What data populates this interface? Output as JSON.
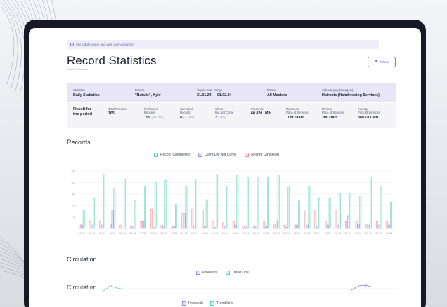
{
  "notice": "Set a date range and view query statistics",
  "page": {
    "title": "Record Statistics",
    "subtitle": "Record Statistics",
    "filters_label": "Filters"
  },
  "info_bar": [
    {
      "label": "Statistics",
      "value": "Daily Statistics"
    },
    {
      "label": "Branch",
      "value": "\"Natalie\", Kyiv"
    },
    {
      "label": "Report Date Range",
      "value": "01.01.24 — 01.02.24"
    },
    {
      "label": "Master",
      "value": "All Masters"
    },
    {
      "label": "Subcategory (Category)",
      "value": "Haircuts (Hairdressing Services)"
    }
  ],
  "results": {
    "heading_line1": "Result for",
    "heading_line2": "the period",
    "total": {
      "label": "Total Records",
      "value": "165"
    },
    "performed": {
      "label1": "Performed",
      "label2": "Records",
      "value": "159",
      "pct": "(96.3%)"
    },
    "canceled": {
      "label1": "Canceled",
      "label2": "Records",
      "value": "4",
      "pct": "(2.5%)"
    },
    "client_not_come": {
      "label1": "Client",
      "label2": "Did Not Come",
      "value": "2",
      "pct": "(1%)"
    },
    "proceeds": {
      "label": "Proceeds",
      "value": "60 420 UAH"
    },
    "max_price": {
      "label1": "Maximum",
      "label2": "Price of Services",
      "value": "1080 UAH"
    },
    "min_price": {
      "label1": "Minimal",
      "label2": "Price of Services",
      "value": "200 UAH"
    },
    "avg_price": {
      "label1": "Average",
      "label2": "Price of Services",
      "value": "360.18 UAH"
    }
  },
  "records_section": {
    "title": "Records",
    "legend": [
      "Record Completed",
      "Client Did Not Come",
      "Record Cancelled"
    ]
  },
  "circulation_section": {
    "title": "Circulation",
    "legend": [
      "Proceeds",
      "Trend Line"
    ],
    "ghost_title": "Circulation"
  },
  "colors": {
    "completed": "#5fd1b4",
    "not_come": "#9b8de0",
    "cancelled": "#f08f93",
    "accent": "#6a63c4"
  },
  "chart_data": {
    "type": "bar",
    "ylim": [
      0,
      50
    ],
    "yticks": [
      10,
      20,
      30,
      40,
      50
    ],
    "categories": [
      "01.01",
      "02.01",
      "03.01",
      "04.01",
      "05.01",
      "06.01",
      "07.01",
      "08.01",
      "09.01",
      "10.01",
      "11.01",
      "12.01",
      "13.01",
      "14.01",
      "15.01",
      "16.01",
      "17.01",
      "18.01",
      "19.01",
      "20.01",
      "21.01",
      "22.01",
      "23.01",
      "24.01",
      "25.01",
      "26.01",
      "27.01",
      "28.01",
      "29.01",
      "30.01",
      "31.01"
    ],
    "series": [
      {
        "name": "Record Completed",
        "values": [
          16,
          26,
          47,
          35,
          43,
          24,
          37,
          40,
          42,
          21,
          37,
          43,
          25,
          47,
          37,
          46,
          44,
          45,
          45,
          46,
          36,
          24,
          37,
          26,
          26,
          30,
          30,
          28,
          45,
          37,
          23
        ]
      },
      {
        "name": "Client Did Not Come",
        "values": [
          3,
          4,
          3,
          16,
          0,
          2,
          6,
          1,
          2,
          2,
          13,
          2,
          2,
          1,
          2,
          3,
          2,
          2,
          2,
          6,
          1,
          3,
          3,
          2,
          3,
          3,
          11,
          4,
          3,
          3,
          3
        ]
      },
      {
        "name": "Record Cancelled",
        "values": [
          4,
          6,
          6,
          4,
          3,
          2,
          6,
          17,
          3,
          2,
          13,
          17,
          16,
          6,
          5,
          6,
          2,
          2,
          6,
          4,
          3,
          3,
          16,
          16,
          6,
          16,
          6,
          6,
          4,
          6,
          6
        ]
      }
    ]
  }
}
